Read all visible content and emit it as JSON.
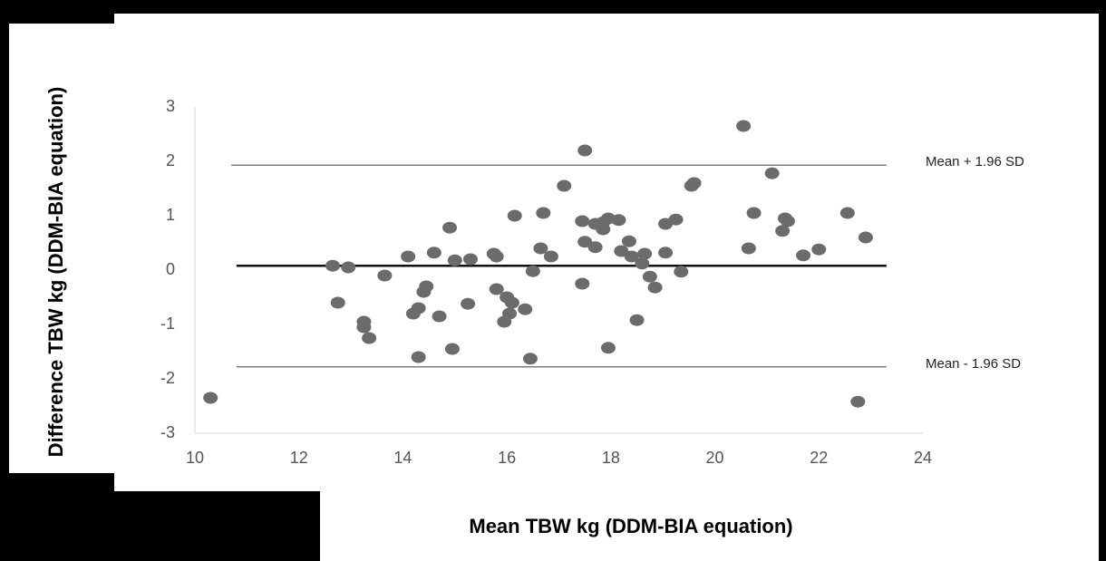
{
  "chart_data": {
    "type": "scatter",
    "xlabel": "Mean TBW kg (DDM-BIA equation)",
    "ylabel": "Difference TBW kg (DDM-BIA equation)",
    "xlim": [
      10,
      24
    ],
    "ylim": [
      -3,
      3
    ],
    "xticks": [
      "10",
      "12",
      "14",
      "16",
      "18",
      "20",
      "22",
      "24"
    ],
    "yticks": [
      "3",
      "2",
      "1",
      "0",
      "-1",
      "-2",
      "-3"
    ],
    "grid": false,
    "point_color": "#6b6b6b",
    "reference_lines": [
      {
        "name": "upper",
        "label": "Mean + 1.96 SD",
        "y": 1.93,
        "x_range": [
          10.7,
          23.3
        ]
      },
      {
        "name": "mean",
        "label": "",
        "y": 0.08,
        "x_range": [
          10.8,
          23.3
        ]
      },
      {
        "name": "lower",
        "label": "Mean - 1.96 SD",
        "y": -1.78,
        "x_range": [
          10.8,
          23.3
        ]
      }
    ],
    "points": [
      {
        "x": 10.3,
        "y": -2.35
      },
      {
        "x": 12.65,
        "y": 0.08
      },
      {
        "x": 12.75,
        "y": -0.6
      },
      {
        "x": 12.95,
        "y": 0.05
      },
      {
        "x": 13.25,
        "y": -0.95
      },
      {
        "x": 13.25,
        "y": -1.05
      },
      {
        "x": 13.35,
        "y": -1.25
      },
      {
        "x": 13.65,
        "y": -0.1
      },
      {
        "x": 14.1,
        "y": 0.25
      },
      {
        "x": 14.2,
        "y": -0.8
      },
      {
        "x": 14.3,
        "y": -0.7
      },
      {
        "x": 14.3,
        "y": -1.6
      },
      {
        "x": 14.4,
        "y": -0.4
      },
      {
        "x": 14.45,
        "y": -0.3
      },
      {
        "x": 14.6,
        "y": 0.32
      },
      {
        "x": 14.7,
        "y": -0.85
      },
      {
        "x": 14.9,
        "y": 0.78
      },
      {
        "x": 14.95,
        "y": -1.45
      },
      {
        "x": 15.0,
        "y": 0.18
      },
      {
        "x": 15.25,
        "y": -0.62
      },
      {
        "x": 15.3,
        "y": 0.2
      },
      {
        "x": 15.75,
        "y": 0.3
      },
      {
        "x": 15.8,
        "y": 0.25
      },
      {
        "x": 15.8,
        "y": -0.35
      },
      {
        "x": 15.95,
        "y": -0.95
      },
      {
        "x": 16.0,
        "y": -0.5
      },
      {
        "x": 16.05,
        "y": -0.8
      },
      {
        "x": 16.1,
        "y": -0.6
      },
      {
        "x": 16.15,
        "y": 1.0
      },
      {
        "x": 16.35,
        "y": -0.72
      },
      {
        "x": 16.45,
        "y": -1.63
      },
      {
        "x": 16.5,
        "y": -0.02
      },
      {
        "x": 16.65,
        "y": 0.4
      },
      {
        "x": 16.7,
        "y": 1.05
      },
      {
        "x": 16.85,
        "y": 0.25
      },
      {
        "x": 17.1,
        "y": 1.55
      },
      {
        "x": 17.45,
        "y": 0.9
      },
      {
        "x": 17.45,
        "y": -0.25
      },
      {
        "x": 17.5,
        "y": 0.52
      },
      {
        "x": 17.5,
        "y": 2.2
      },
      {
        "x": 17.7,
        "y": 0.85
      },
      {
        "x": 17.7,
        "y": 0.42
      },
      {
        "x": 17.85,
        "y": 0.75
      },
      {
        "x": 17.85,
        "y": 0.88
      },
      {
        "x": 17.95,
        "y": 0.95
      },
      {
        "x": 17.95,
        "y": -1.43
      },
      {
        "x": 18.15,
        "y": 0.92
      },
      {
        "x": 18.2,
        "y": 0.35
      },
      {
        "x": 18.35,
        "y": 0.53
      },
      {
        "x": 18.4,
        "y": 0.25
      },
      {
        "x": 18.5,
        "y": -0.92
      },
      {
        "x": 18.6,
        "y": 0.12
      },
      {
        "x": 18.65,
        "y": 0.3
      },
      {
        "x": 18.75,
        "y": -0.12
      },
      {
        "x": 18.85,
        "y": -0.32
      },
      {
        "x": 19.05,
        "y": 0.85
      },
      {
        "x": 19.05,
        "y": 0.32
      },
      {
        "x": 19.25,
        "y": 0.93
      },
      {
        "x": 19.35,
        "y": -0.03
      },
      {
        "x": 19.55,
        "y": 1.55
      },
      {
        "x": 19.6,
        "y": 1.6
      },
      {
        "x": 20.55,
        "y": 2.65
      },
      {
        "x": 20.65,
        "y": 0.4
      },
      {
        "x": 20.75,
        "y": 1.05
      },
      {
        "x": 21.1,
        "y": 1.78
      },
      {
        "x": 21.3,
        "y": 0.72
      },
      {
        "x": 21.35,
        "y": 0.95
      },
      {
        "x": 21.4,
        "y": 0.9
      },
      {
        "x": 21.7,
        "y": 0.27
      },
      {
        "x": 22.0,
        "y": 0.38
      },
      {
        "x": 22.55,
        "y": 1.05
      },
      {
        "x": 22.75,
        "y": -2.42
      },
      {
        "x": 22.9,
        "y": 0.6
      }
    ]
  }
}
